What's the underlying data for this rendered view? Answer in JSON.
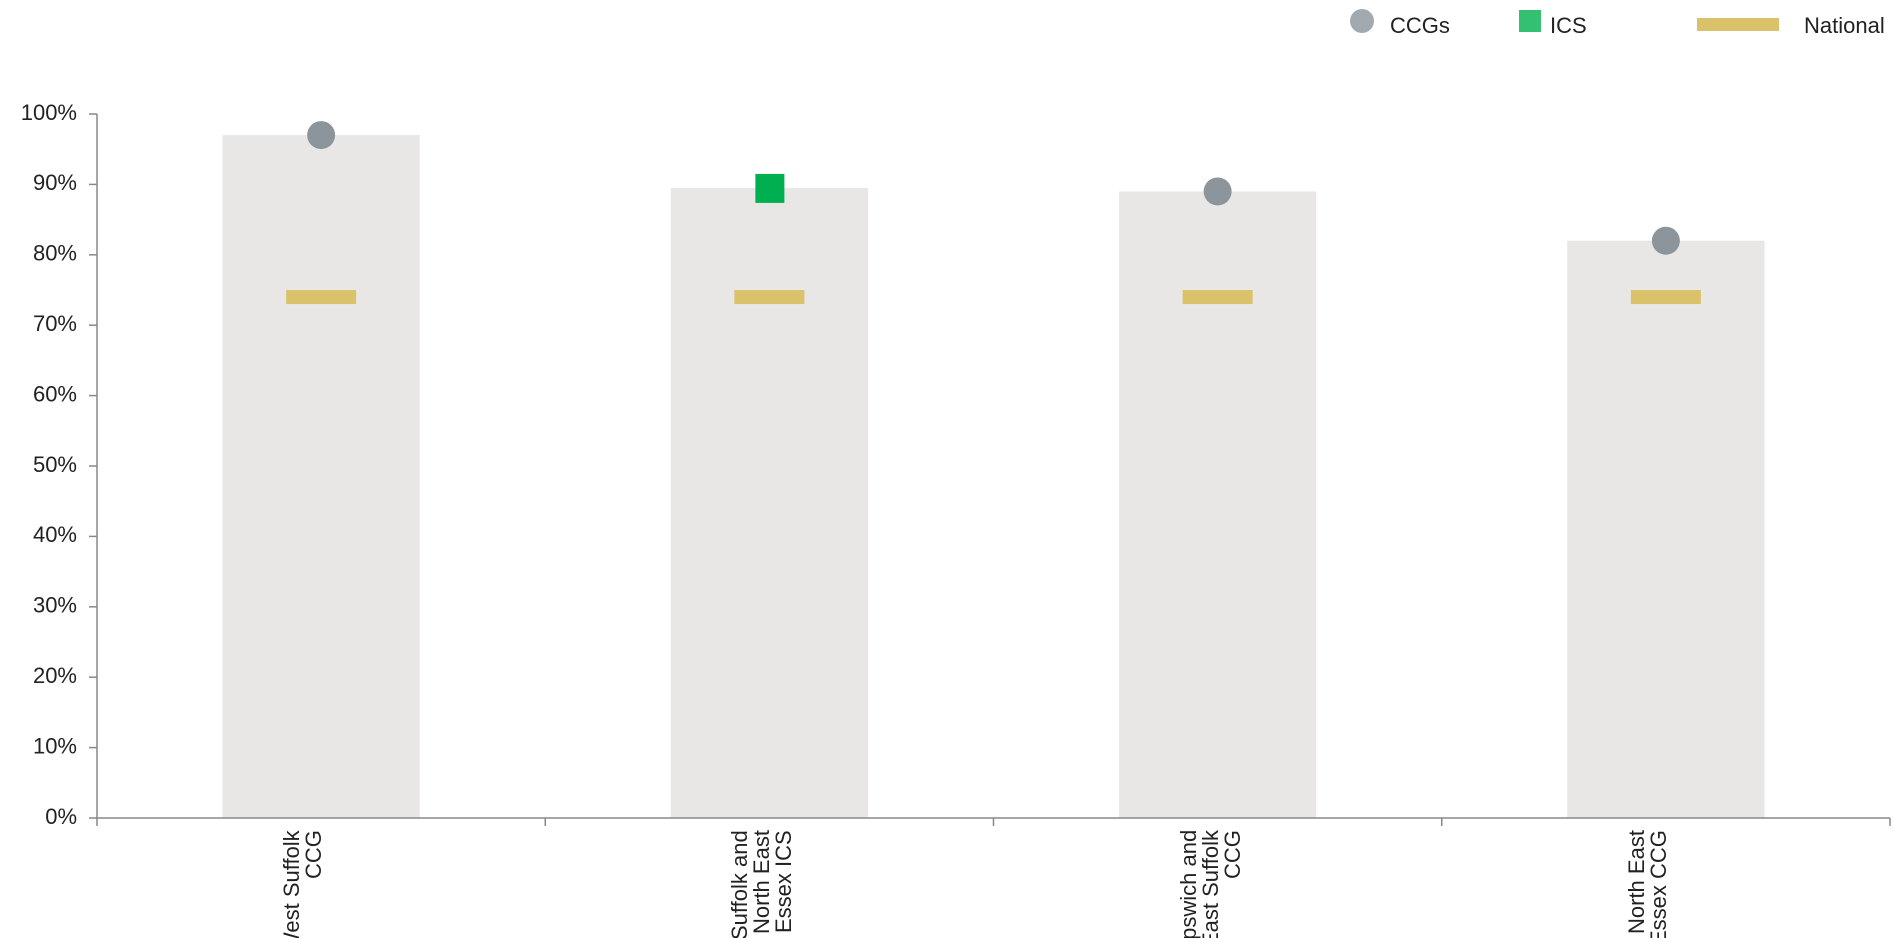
{
  "chart_data": {
    "type": "bar",
    "categories": [
      "West Suffolk CCG",
      "Suffolk and North East Essex ICS",
      "Ipswich and East Suffolk CCG",
      "North East Essex CCG"
    ],
    "bar_color": "#e8e7e6",
    "series": [
      {
        "name": "CCGs",
        "color": "#8c959b",
        "marker": "circle",
        "values": [
          97,
          null,
          89,
          82
        ]
      },
      {
        "name": "ICS",
        "color": "#00b050",
        "marker": "square",
        "values": [
          null,
          89.5,
          null,
          null
        ]
      },
      {
        "name": "National",
        "color": "#d9c26a",
        "marker": "dash",
        "values": [
          74,
          74,
          74,
          74
        ]
      }
    ],
    "ylim": [
      0,
      100
    ],
    "yticks": [
      {
        "value": 0,
        "label": "0%"
      },
      {
        "value": 10,
        "label": "10%"
      },
      {
        "value": 20,
        "label": "20%"
      },
      {
        "value": 30,
        "label": "30%"
      },
      {
        "value": 40,
        "label": "40%"
      },
      {
        "value": 50,
        "label": "50%"
      },
      {
        "value": 60,
        "label": "60%"
      },
      {
        "value": 70,
        "label": "70%"
      },
      {
        "value": 80,
        "label": "80%"
      },
      {
        "value": 90,
        "label": "90%"
      },
      {
        "value": 100,
        "label": "100%"
      }
    ],
    "legend": "top-right"
  }
}
